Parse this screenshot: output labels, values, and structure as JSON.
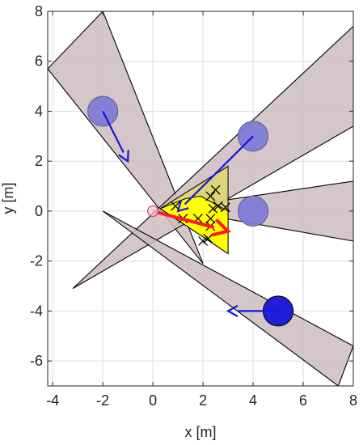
{
  "chart_data": {
    "type": "scatter",
    "xlabel": "x [m]",
    "ylabel": "y [m]",
    "xlim": [
      -4.2,
      8
    ],
    "ylim": [
      -7,
      8
    ],
    "xticks": [
      -4,
      -2,
      0,
      2,
      4,
      6,
      8
    ],
    "yticks": [
      -6,
      -4,
      -2,
      0,
      2,
      4,
      6,
      8
    ],
    "xtick_labels": [
      "-4",
      "-2",
      "0",
      "2",
      "4",
      "6",
      "8"
    ],
    "ytick_labels": [
      "-6",
      "-4",
      "-2",
      "0",
      "2",
      "4",
      "6",
      "8"
    ],
    "grid": true,
    "colors": {
      "cone_fill": "#cdbcbf",
      "agent_faded": "#7b78d6",
      "agent_solid": "#1f1fd6",
      "velocity_arrow": "#1515e0",
      "robot_arrow": "#ff1a1a",
      "yellow_region": "#ffff00",
      "olive_region": "#ddd670"
    },
    "velocity_cones": [
      {
        "apex": [
          2.0,
          -2.1
        ],
        "p1": [
          -4.2,
          5.7
        ],
        "p2": [
          -2.0,
          8.0
        ]
      },
      {
        "apex": [
          -3.2,
          -3.1
        ],
        "p1": [
          8.0,
          7.4
        ],
        "p2": [
          8.0,
          3.4
        ]
      },
      {
        "apex": [
          0.6,
          0.1
        ],
        "p1": [
          8.0,
          1.2
        ],
        "p2": [
          8.0,
          -1.2
        ]
      },
      {
        "apex": [
          -2.0,
          0.0
        ],
        "p1": [
          8.0,
          -5.4
        ],
        "p2": [
          7.4,
          -7.0
        ]
      }
    ],
    "agents": [
      {
        "center": [
          -2.0,
          4.0
        ],
        "radius": 0.6,
        "style": "faded",
        "velocity": [
          1.0,
          -2.0
        ]
      },
      {
        "center": [
          4.0,
          3.0
        ],
        "radius": 0.6,
        "style": "faded",
        "velocity": [
          -3.0,
          -3.0
        ]
      },
      {
        "center": [
          4.0,
          0.0
        ],
        "radius": 0.6,
        "style": "faded",
        "velocity": null
      },
      {
        "center": [
          5.0,
          -4.0
        ],
        "radius": 0.6,
        "style": "solid",
        "velocity": [
          -2.0,
          0.0
        ]
      }
    ],
    "robot": {
      "position": [
        0.0,
        0.0
      ],
      "velocity": [
        3.0,
        -0.8
      ]
    },
    "reachable_region": [
      [
        0.3,
        0.1
      ],
      [
        3.0,
        1.8
      ],
      [
        3.0,
        -1.7
      ]
    ],
    "feasible_region": [
      [
        0.3,
        0.1
      ],
      [
        1.3,
        0.5
      ],
      [
        1.9,
        0.6
      ],
      [
        3.0,
        0.0
      ],
      [
        3.0,
        -1.7
      ]
    ],
    "candidate_velocities": [
      [
        0.9,
        0.2
      ],
      [
        1.2,
        -0.3
      ],
      [
        1.8,
        -0.3
      ],
      [
        2.2,
        -1.1
      ],
      [
        2.0,
        -1.2
      ],
      [
        2.3,
        -0.6
      ],
      [
        2.3,
        0.6
      ],
      [
        2.5,
        0.85
      ],
      [
        2.4,
        0.1
      ],
      [
        2.6,
        0.2
      ],
      [
        2.9,
        0.15
      ],
      [
        2.3,
        -0.3
      ]
    ]
  }
}
